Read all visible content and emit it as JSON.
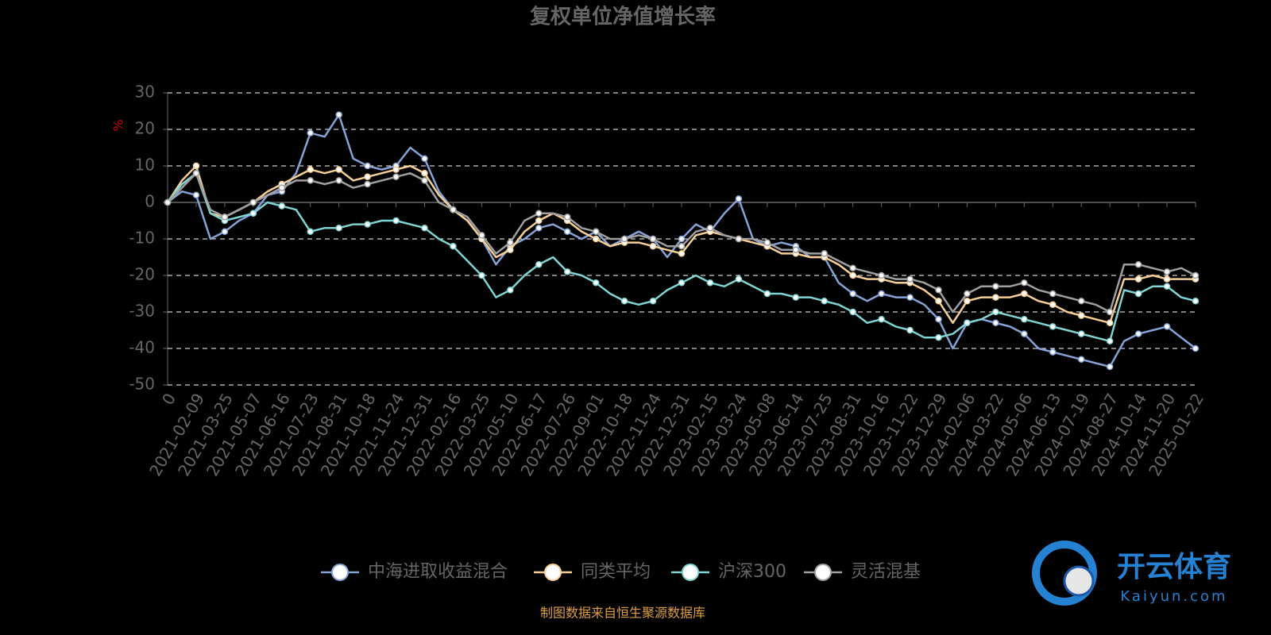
{
  "chart_data": {
    "type": "line",
    "title": "复权单位净值增长率",
    "y_label": "%",
    "source": "制图数据来自恒生聚源数据库",
    "watermark": {
      "text": "开云体育",
      "subtext": "Kaiyun.com"
    },
    "categories": [
      "0",
      null,
      "2021-02-09",
      null,
      "2021-03-25",
      null,
      "2021-05-07",
      null,
      "2021-06-16",
      null,
      "2021-07-23",
      null,
      "2021-08-31",
      null,
      "2021-10-18",
      null,
      "2021-11-24",
      null,
      "2021-12-31",
      null,
      "2022-02-16",
      null,
      "2022-03-25",
      null,
      "2022-05-10",
      null,
      "2022-06-17",
      null,
      "2022-07-26",
      null,
      "2022-09-01",
      null,
      "2022-10-18",
      null,
      "2022-11-24",
      null,
      "2022-12-31",
      null,
      "2023-02-15",
      null,
      "2023-03-24",
      null,
      "2023-05-08",
      null,
      "2023-06-14",
      null,
      "2023-07-25",
      null,
      "2023-08-31",
      null,
      "2023-10-16",
      null,
      "2023-11-22",
      null,
      "2023-12-29",
      null,
      "2024-02-06",
      null,
      "2024-03-22",
      null,
      "2024-05-06",
      null,
      "2024-06-13",
      null,
      "2024-07-19",
      null,
      "2024-08-27",
      null,
      "2024-10-14",
      null,
      "2024-11-20",
      null,
      "2025-01-22"
    ],
    "series": [
      {
        "name": "中海进取收益混合",
        "color": "#86a3d8",
        "values": [
          0,
          3,
          2,
          -10,
          -8,
          -5,
          -3,
          2,
          3,
          8,
          19,
          18,
          24,
          12,
          10,
          9,
          10,
          15,
          12,
          3,
          -2,
          -5,
          -10,
          -17,
          -12,
          -10,
          -7,
          -6,
          -8,
          -10,
          -8,
          -12,
          -10,
          -8,
          -10,
          -15,
          -10,
          -6,
          -8,
          -3,
          1,
          -10,
          -12,
          -11,
          -12,
          -15,
          -15,
          -22,
          -25,
          -27,
          -25,
          -26,
          -26,
          -28,
          -32,
          -40,
          -33,
          -32,
          -33,
          -34,
          -36,
          -40,
          -41,
          -42,
          -43,
          -44,
          -45,
          -38,
          -36,
          -35,
          -34,
          -37,
          -40
        ]
      },
      {
        "name": "同类平均",
        "color": "#f7cf96",
        "values": [
          0,
          6,
          10,
          -3,
          -4,
          -2,
          0,
          3,
          5,
          7,
          9,
          8,
          9,
          6,
          7,
          8,
          9,
          10,
          8,
          2,
          -2,
          -5,
          -10,
          -15,
          -13,
          -8,
          -5,
          -3,
          -5,
          -8,
          -10,
          -12,
          -11,
          -11,
          -12,
          -13,
          -14,
          -9,
          -8,
          -9,
          -10,
          -11,
          -12,
          -14,
          -14,
          -15,
          -15,
          -17,
          -20,
          -21,
          -21,
          -22,
          -22,
          -24,
          -27,
          -33,
          -27,
          -26,
          -26,
          -26,
          -25,
          -27,
          -28,
          -30,
          -31,
          -32,
          -33,
          -21,
          -21,
          -20,
          -21,
          -21,
          -21
        ]
      },
      {
        "name": "沪深300",
        "color": "#7fd4d4",
        "values": [
          0,
          5,
          8,
          -3,
          -5,
          -4,
          -3,
          0,
          -1,
          -2,
          -8,
          -7,
          -7,
          -6,
          -6,
          -5,
          -5,
          -6,
          -7,
          -10,
          -12,
          -16,
          -20,
          -26,
          -24,
          -20,
          -17,
          -15,
          -19,
          -20,
          -22,
          -25,
          -27,
          -28,
          -27,
          -24,
          -22,
          -20,
          -22,
          -23,
          -21,
          -23,
          -25,
          -25,
          -26,
          -26,
          -27,
          -28,
          -30,
          -33,
          -32,
          -34,
          -35,
          -37,
          -37,
          -36,
          -33,
          -32,
          -30,
          -31,
          -32,
          -33,
          -34,
          -35,
          -36,
          -37,
          -38,
          -24,
          -25,
          -23,
          -23,
          -26,
          -27
        ]
      },
      {
        "name": "灵活混基",
        "color": "#a0a0a0",
        "values": [
          0,
          4,
          8,
          -2,
          -4,
          -2,
          0,
          2,
          4,
          6,
          6,
          5,
          6,
          4,
          5,
          6,
          7,
          8,
          6,
          0,
          -2,
          -4,
          -9,
          -14,
          -11,
          -5,
          -3,
          -3,
          -4,
          -7,
          -8,
          -10,
          -10,
          -9,
          -10,
          -12,
          -12,
          -8,
          -7,
          -9,
          -10,
          -10,
          -11,
          -13,
          -13,
          -14,
          -14,
          -16,
          -18,
          -19,
          -20,
          -21,
          -21,
          -22,
          -24,
          -30,
          -25,
          -23,
          -23,
          -23,
          -22,
          -24,
          -25,
          -26,
          -27,
          -28,
          -30,
          -17,
          -17,
          -18,
          -19,
          -18,
          -20
        ]
      }
    ],
    "ylim": [
      -50,
      30
    ],
    "yticks": [
      -50,
      -40,
      -30,
      -20,
      -10,
      0,
      10,
      20,
      30
    ],
    "grid": true
  }
}
